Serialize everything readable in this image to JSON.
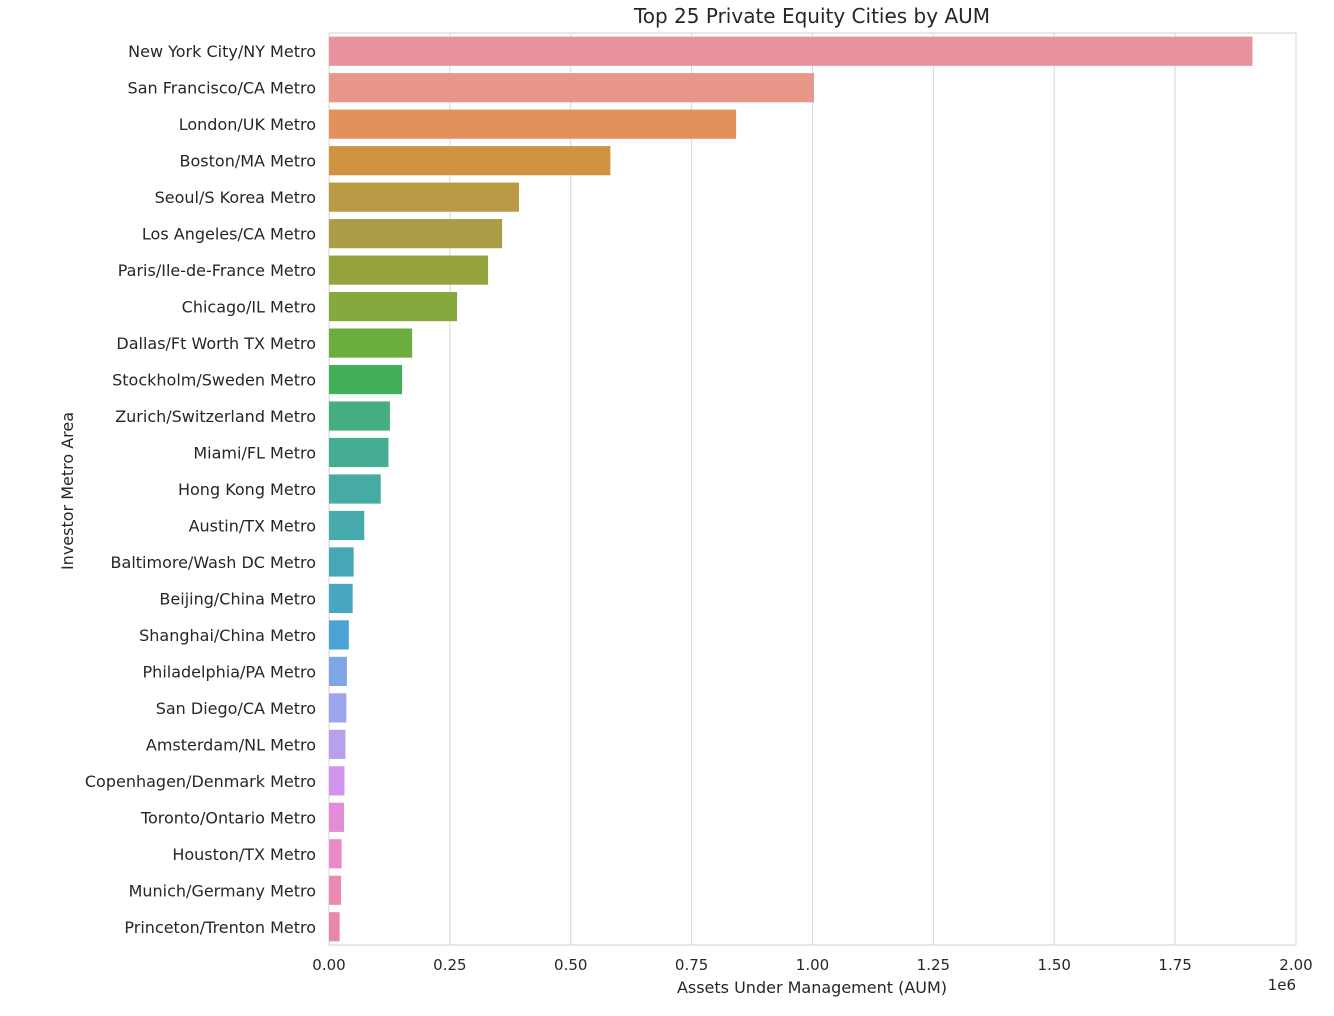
{
  "chart_data": {
    "type": "bar",
    "orientation": "horizontal",
    "title": "Top 25 Private Equity Cities by AUM",
    "xlabel": "Assets Under Management (AUM)",
    "ylabel": "Investor Metro Area",
    "x_offset_label": "1e6",
    "xlim": [
      0,
      2000000
    ],
    "x_ticks": [
      0,
      250000,
      500000,
      750000,
      1000000,
      1250000,
      1500000,
      1750000,
      2000000
    ],
    "x_tick_labels": [
      "0.00",
      "0.25",
      "0.50",
      "0.75",
      "1.00",
      "1.25",
      "1.50",
      "1.75",
      "2.00"
    ],
    "grid": "vertical",
    "categories": [
      "New York City/NY Metro",
      "San Francisco/CA Metro",
      "London/UK Metro",
      "Boston/MA Metro",
      "Seoul/S Korea Metro",
      "Los Angeles/CA Metro",
      "Paris/Ile-de-France Metro",
      "Chicago/IL Metro",
      "Dallas/Ft Worth TX Metro",
      "Stockholm/Sweden Metro",
      "Zurich/Switzerland Metro",
      "Miami/FL Metro",
      "Hong Kong Metro",
      "Austin/TX Metro",
      "Baltimore/Wash DC Metro",
      "Beijing/China Metro",
      "Shanghai/China Metro",
      "Philadelphia/PA Metro",
      "San Diego/CA Metro",
      "Amsterdam/NL Metro",
      "Copenhagen/Denmark Metro",
      "Toronto/Ontario Metro",
      "Houston/TX Metro",
      "Munich/Germany Metro",
      "Princeton/Trenton Metro"
    ],
    "values": [
      1910000,
      1003000,
      842000,
      582000,
      393000,
      358000,
      329000,
      265000,
      172000,
      151000,
      126000,
      123000,
      107000,
      73000,
      51000,
      49000,
      41000,
      37000,
      36000,
      34000,
      32000,
      31000,
      26000,
      25000,
      22000
    ],
    "colors": [
      "#e8919f",
      "#e8958a",
      "#e3915a",
      "#cf9342",
      "#bb9a46",
      "#ab9d46",
      "#97a43e",
      "#86a93e",
      "#6cad40",
      "#41ae58",
      "#44ae82",
      "#45ad94",
      "#46aca3",
      "#47aaad",
      "#46a8b6",
      "#47a7c1",
      "#4ba3d4",
      "#7ea6e6",
      "#9ea5ec",
      "#b8a1ec",
      "#d294ec",
      "#e38cd8",
      "#ea8ac6",
      "#eb8bb4",
      "#e88aa6"
    ]
  }
}
